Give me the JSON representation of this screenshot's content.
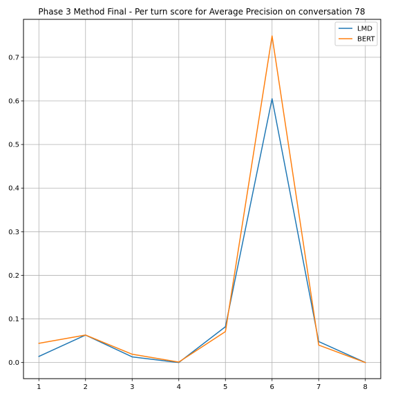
{
  "chart_data": {
    "type": "line",
    "title": "Phase 3 Method Final - Per turn score for Average Precision on conversation 78",
    "xlabel": "",
    "ylabel": "",
    "x": [
      1,
      2,
      3,
      4,
      5,
      6,
      7,
      8
    ],
    "xlim": [
      0.67,
      8.33
    ],
    "ylim": [
      -0.037,
      0.787
    ],
    "xticks": [
      1,
      2,
      3,
      4,
      5,
      6,
      7,
      8
    ],
    "yticks": [
      0.0,
      0.1,
      0.2,
      0.3,
      0.4,
      0.5,
      0.6,
      0.7
    ],
    "grid": true,
    "legend_position": "top-right",
    "series": [
      {
        "name": "LMD",
        "color": "#1f77b4",
        "values": [
          0.014,
          0.063,
          0.013,
          0.0,
          0.082,
          0.605,
          0.048,
          0.0
        ]
      },
      {
        "name": "BERT",
        "color": "#ff7f0e",
        "values": [
          0.044,
          0.063,
          0.019,
          0.001,
          0.071,
          0.749,
          0.04,
          0.0
        ]
      }
    ]
  }
}
